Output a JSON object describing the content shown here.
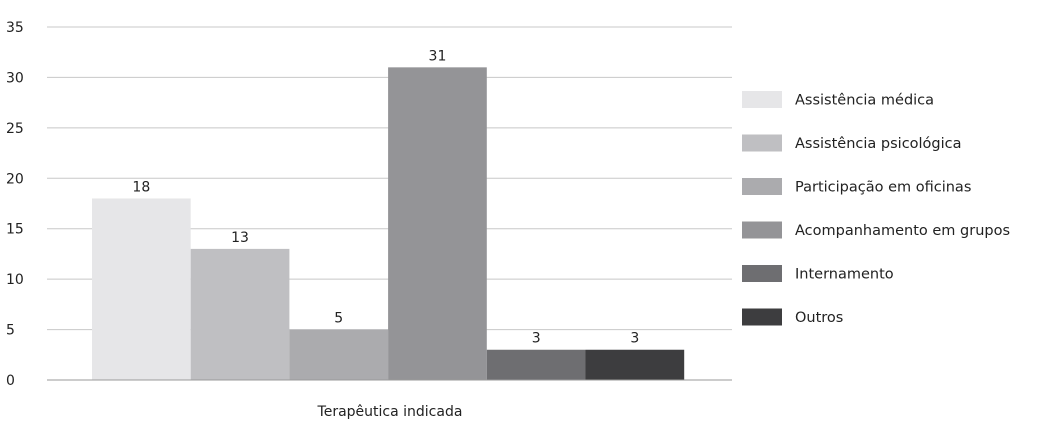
{
  "chart_data": {
    "type": "bar",
    "xlabel": "Terapêutica indicada",
    "ylabel": "",
    "ylim": [
      0,
      35
    ],
    "yticks": [
      0,
      5,
      10,
      15,
      20,
      25,
      30,
      35
    ],
    "grid": true,
    "legend_position": "right",
    "series": [
      {
        "name": "Assistência médica",
        "values": [
          18
        ],
        "color": "#e6e6e8"
      },
      {
        "name": "Assistência psicológica",
        "values": [
          13
        ],
        "color": "#bfbfc2"
      },
      {
        "name": "Participação em oficinas",
        "values": [
          5
        ],
        "color": "#ababae"
      },
      {
        "name": "Acompanhamento em grupos",
        "values": [
          31
        ],
        "color": "#949497"
      },
      {
        "name": "Internamento",
        "values": [
          3
        ],
        "color": "#6e6e71"
      },
      {
        "name": "Outros",
        "values": [
          3
        ],
        "color": "#3d3d3f"
      }
    ]
  }
}
